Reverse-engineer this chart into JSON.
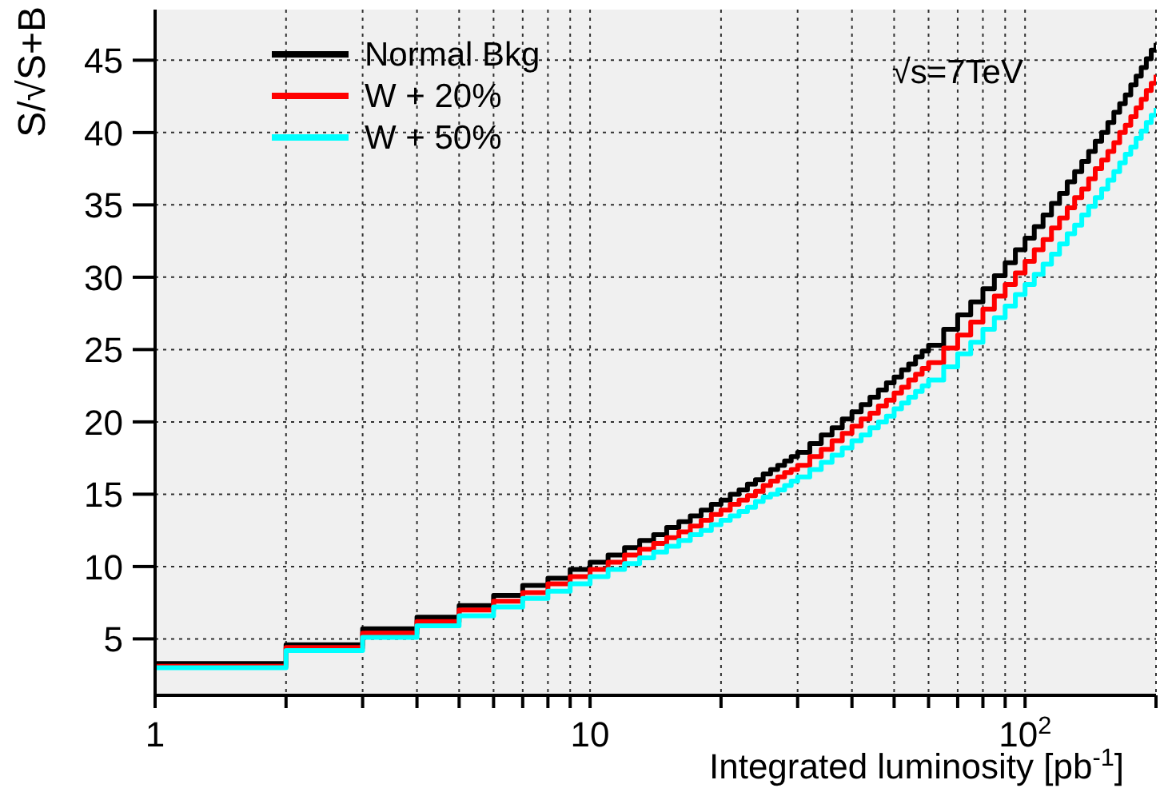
{
  "chart_data": {
    "type": "step",
    "xlabel": "Integrated luminosity [pb$^{-1}$]",
    "ylabel": "S/√S+B",
    "annotations": [
      "√s=7TeV"
    ],
    "log": "x",
    "grid": true,
    "legend": "top left",
    "x": [
      1,
      2,
      3,
      4,
      5,
      6,
      7,
      8,
      9,
      10,
      11,
      12,
      13,
      14,
      15,
      16,
      17,
      18,
      19,
      20,
      21,
      22,
      23,
      24,
      25,
      26,
      27,
      28,
      29,
      30,
      32,
      34,
      36,
      38,
      40,
      42,
      44,
      46,
      48,
      50,
      52,
      54,
      56,
      58,
      60,
      65,
      70,
      75,
      80,
      85,
      90,
      95,
      100,
      105,
      110,
      115,
      120,
      125,
      130,
      135,
      140,
      145,
      150,
      155,
      160,
      165,
      170,
      175,
      180,
      185,
      190,
      195,
      200
    ],
    "series": [
      {
        "name": "Normal Bkg",
        "color": "#000000",
        "values": [
          3.3,
          4.6,
          5.7,
          6.5,
          7.3,
          8.0,
          8.7,
          9.2,
          9.8,
          10.3,
          10.8,
          11.3,
          11.8,
          12.2,
          12.7,
          13.1,
          13.5,
          13.9,
          14.3,
          14.6,
          15.0,
          15.3,
          15.7,
          16.0,
          16.4,
          16.7,
          17.0,
          17.3,
          17.6,
          17.9,
          18.5,
          19.1,
          19.6,
          20.2,
          20.7,
          21.2,
          21.7,
          22.2,
          22.7,
          23.1,
          23.6,
          24.0,
          24.5,
          24.9,
          25.3,
          26.4,
          27.4,
          28.3,
          29.2,
          30.1,
          31.0,
          31.9,
          32.7,
          33.5,
          34.3,
          35.1,
          35.8,
          36.6,
          37.3,
          38.0,
          38.7,
          39.4,
          40.0,
          40.7,
          41.4,
          42.0,
          42.6,
          43.3,
          43.9,
          44.5,
          45.1,
          45.7,
          46.2
        ]
      },
      {
        "name": "W + 20%",
        "color": "#ff0000",
        "values": [
          3.1,
          4.4,
          5.4,
          6.2,
          7.0,
          7.6,
          8.2,
          8.8,
          9.3,
          9.8,
          10.3,
          10.8,
          11.2,
          11.6,
          12.0,
          12.4,
          12.8,
          13.2,
          13.6,
          13.9,
          14.3,
          14.6,
          14.9,
          15.2,
          15.6,
          15.9,
          16.2,
          16.5,
          16.7,
          17.0,
          17.6,
          18.1,
          18.7,
          19.2,
          19.7,
          20.2,
          20.6,
          21.1,
          21.5,
          22.0,
          22.4,
          22.9,
          23.3,
          23.7,
          24.1,
          25.1,
          26.0,
          26.9,
          27.8,
          28.7,
          29.5,
          30.3,
          31.1,
          31.9,
          32.6,
          33.4,
          34.1,
          34.8,
          35.5,
          36.1,
          36.8,
          37.5,
          38.1,
          38.7,
          39.3,
          40.0,
          40.5,
          41.1,
          41.7,
          42.3,
          42.9,
          43.4,
          44.0
        ]
      },
      {
        "name": "W + 50%",
        "color": "#00ffff",
        "values": [
          3.0,
          4.2,
          5.1,
          5.9,
          6.6,
          7.2,
          7.8,
          8.3,
          8.8,
          9.3,
          9.8,
          10.2,
          10.6,
          11.0,
          11.4,
          11.8,
          12.2,
          12.5,
          12.9,
          13.2,
          13.5,
          13.8,
          14.1,
          14.5,
          14.8,
          15.0,
          15.3,
          15.6,
          15.9,
          16.2,
          16.7,
          17.2,
          17.7,
          18.2,
          18.7,
          19.1,
          19.6,
          20.0,
          20.4,
          20.9,
          21.3,
          21.7,
          22.1,
          22.5,
          22.9,
          23.8,
          24.7,
          25.5,
          26.4,
          27.2,
          28.0,
          28.8,
          29.5,
          30.2,
          30.9,
          31.6,
          32.3,
          33.0,
          33.6,
          34.3,
          34.9,
          35.5,
          36.1,
          36.7,
          37.3,
          37.9,
          38.5,
          39.0,
          39.6,
          40.1,
          40.7,
          41.2,
          41.7
        ]
      }
    ],
    "xlim": [
      1,
      200
    ],
    "xticks": [
      1,
      {
        "value": 2,
        "label": null
      },
      {
        "value": 3,
        "label": null
      },
      {
        "value": 4,
        "label": null
      },
      {
        "value": 5,
        "label": null
      },
      {
        "value": 6,
        "label": null
      },
      {
        "value": 7,
        "label": null
      },
      {
        "value": 8,
        "label": null
      },
      {
        "value": 9,
        "label": null
      },
      10,
      {
        "value": 20,
        "label": null
      },
      {
        "value": 30,
        "label": null
      },
      {
        "value": 40,
        "label": null
      },
      {
        "value": 50,
        "label": null
      },
      {
        "value": 60,
        "label": null
      },
      {
        "value": 70,
        "label": null
      },
      {
        "value": 80,
        "label": null
      },
      {
        "value": 90,
        "label": null
      },
      {
        "value": 100,
        "label": "10$^{2}$"
      },
      {
        "value": 200,
        "label": null
      }
    ],
    "ylim": [
      1.1,
      48.5
    ],
    "yticks": [
      5,
      10,
      15,
      20,
      25,
      30,
      35,
      40,
      45
    ]
  }
}
